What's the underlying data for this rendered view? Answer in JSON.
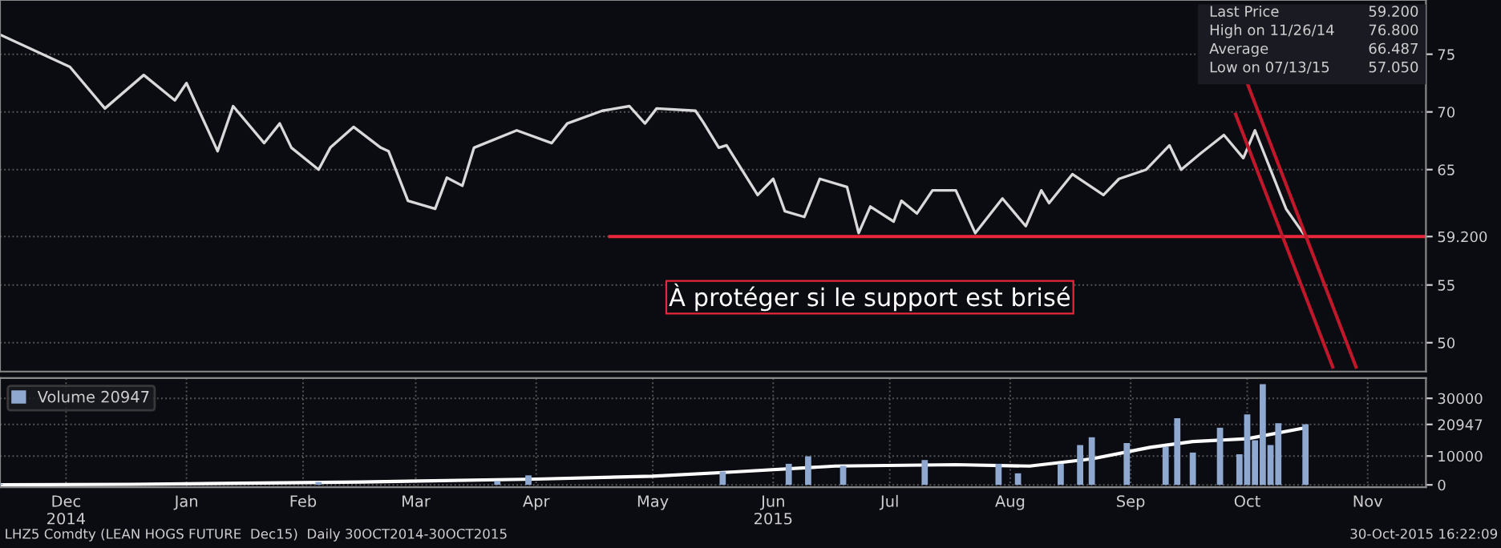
{
  "chart_data": [
    {
      "type": "line",
      "x": [
        "2014-11-28",
        "2014-12-16",
        "2014-12-25",
        "2015-01-04",
        "2015-01-12",
        "2015-01-15",
        "2015-01-23",
        "2015-01-27",
        "2015-02-04",
        "2015-02-08",
        "2015-02-11",
        "2015-02-18",
        "2015-02-21",
        "2015-02-27",
        "2015-03-06",
        "2015-03-08",
        "2015-03-13",
        "2015-03-20",
        "2015-03-23",
        "2015-03-27",
        "2015-03-30",
        "2015-04-10",
        "2015-04-19",
        "2015-04-23",
        "2015-05-02",
        "2015-05-09",
        "2015-05-13",
        "2015-05-16",
        "2015-05-26",
        "2015-05-28",
        "2015-06-01",
        "2015-06-03",
        "2015-06-11",
        "2015-06-15",
        "2015-06-18",
        "2015-06-23",
        "2015-06-27",
        "2015-07-04",
        "2015-07-07",
        "2015-07-10",
        "2015-07-16",
        "2015-07-18",
        "2015-07-22",
        "2015-07-26",
        "2015-08-01",
        "2015-08-06",
        "2015-08-13",
        "2015-08-19",
        "2015-08-23",
        "2015-08-25",
        "2015-08-31",
        "2015-09-08",
        "2015-09-12",
        "2015-09-19",
        "2015-09-25",
        "2015-09-28",
        "2015-10-03",
        "2015-10-09",
        "2015-10-14",
        "2015-10-17",
        "2015-10-21",
        "2015-10-25",
        "2015-10-30"
      ],
      "series": [
        {
          "color": "#d9d9d9",
          "values": [
            76.7,
            73.9,
            70.3,
            73.2,
            71.0,
            72.5,
            66.6,
            70.5,
            67.3,
            69.0,
            66.9,
            65.0,
            66.9,
            68.7,
            66.9,
            66.6,
            62.3,
            61.6,
            64.3,
            63.6,
            66.9,
            68.4,
            67.3,
            69.0,
            70.1,
            70.5,
            69.0,
            70.3,
            70.1,
            69.1,
            66.9,
            67.1,
            62.8,
            64.2,
            61.4,
            60.9,
            64.2,
            63.5,
            59.5,
            61.8,
            60.5,
            62.3,
            61.2,
            63.2,
            63.2,
            59.5,
            62.5,
            60.1,
            63.2,
            62.1,
            64.6,
            62.8,
            64.2,
            65.0,
            67.1,
            65.0,
            66.4,
            68.0,
            66.0,
            68.4,
            65.0,
            61.6,
            59.2
          ]
        },
        {
          "color": "#e8283a",
          "x": [
            "2015-05-04",
            "2015-11-30"
          ],
          "values": [
            59.2,
            59.2
          ]
        },
        {
          "color": "#c0182a",
          "x": [
            "2015-10-15",
            "2015-11-12"
          ],
          "values": [
            72.5,
            47.9
          ]
        },
        {
          "color": "#c0182a",
          "x": [
            "2015-10-12",
            "2015-11-06"
          ],
          "values": [
            69.8,
            47.9
          ]
        }
      ],
      "xlim": [
        "2014-11-28",
        "2015-11-30"
      ],
      "ylim": [
        47.5,
        79.7
      ],
      "yticks": [
        50,
        55,
        {
          "value": 59.2,
          "label": "59.200"
        },
        65,
        70,
        75
      ],
      "tick_labels": "y",
      "grid": true,
      "marker": "none",
      "line_style": "solid",
      "annotations": [
        "Last Price 59.200",
        "High on 11/26/14 76.800",
        "Average 66.487",
        "Low on 07/13/15 57.050",
        "À protéger si le support est brisé"
      ]
    },
    {
      "type": "bar",
      "x": [
        "2014-11-28",
        "2015-02-18",
        "2015-04-05",
        "2015-04-13",
        "2015-06-02",
        "2015-06-19",
        "2015-06-24",
        "2015-07-03",
        "2015-07-24",
        "2015-08-12",
        "2015-08-17",
        "2015-08-28",
        "2015-09-02",
        "2015-09-05",
        "2015-09-14",
        "2015-09-24",
        "2015-09-27",
        "2015-10-01",
        "2015-10-08",
        "2015-10-13",
        "2015-10-15",
        "2015-10-17",
        "2015-10-19",
        "2015-10-21",
        "2015-10-23",
        "2015-10-30"
      ],
      "series": [
        {
          "name": "Volume 20947",
          "color": "#8fa8d0",
          "values": [
            300,
            1000,
            1300,
            3300,
            4600,
            7300,
            9900,
            6600,
            8600,
            7300,
            4000,
            7300,
            13800,
            16500,
            14500,
            13200,
            23100,
            11200,
            19800,
            10600,
            24400,
            15500,
            34900,
            13800,
            21400,
            21000
          ]
        },
        {
          "type": "line",
          "color": "#ffffff",
          "x": [
            "2014-11-28",
            "2015-01-01",
            "2015-03-01",
            "2015-04-15",
            "2015-05-15",
            "2015-06-05",
            "2015-07-01",
            "2015-08-01",
            "2015-08-20",
            "2015-09-05",
            "2015-09-20",
            "2015-10-01",
            "2015-10-15",
            "2015-10-30"
          ],
          "values": [
            0,
            200,
            1000,
            2000,
            3000,
            4500,
            6500,
            7000,
            6500,
            9000,
            13000,
            15000,
            16000,
            19800
          ]
        }
      ],
      "xlim": [
        "2014-11-28",
        "2015-11-30"
      ],
      "ylim": [
        -800,
        37000
      ],
      "yticks": [
        0,
        10000,
        {
          "value": 20947,
          "label": "20947"
        },
        30000
      ],
      "xticks": [
        {
          "value": "2014-12-15",
          "label": "Dec\n2014"
        },
        {
          "value": "2015-01-15",
          "label": "Jan"
        },
        {
          "value": "2015-02-14",
          "label": "Feb"
        },
        {
          "value": "2015-03-15",
          "label": "Mar"
        },
        {
          "value": "2015-04-15",
          "label": "Apr"
        },
        {
          "value": "2015-05-15",
          "label": "May"
        },
        {
          "value": "2015-06-15",
          "label": "Jun\n2015"
        },
        {
          "value": "2015-07-15",
          "label": "Jul"
        },
        {
          "value": "2015-08-15",
          "label": "Aug"
        },
        {
          "value": "2015-09-15",
          "label": "Sep"
        },
        {
          "value": "2015-10-15",
          "label": "Oct"
        },
        {
          "value": "2015-11-15",
          "label": "Nov"
        }
      ],
      "grid": true,
      "legend": "top left",
      "annotations": [
        "LHZ5 Comdty (LEAN HOGS FUTURE  Dec15)  Daily 30OCT2014-30OCT2015",
        "30-Oct-2015 16:22:09"
      ]
    }
  ]
}
